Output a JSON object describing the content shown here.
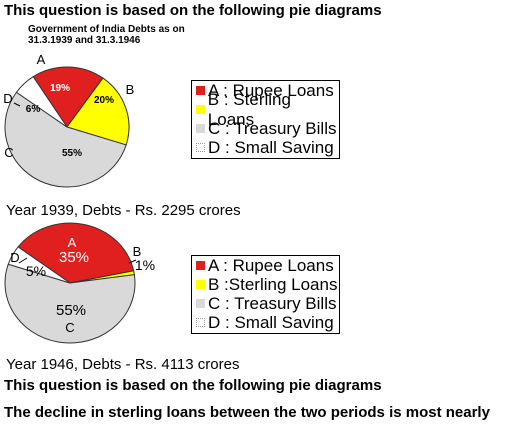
{
  "header": {
    "title": "This question is based on the following pie diagrams"
  },
  "chart_1939": {
    "subtitle_line1": "Government of India Debts as on",
    "subtitle_line2": "31.3.1939 and 31.3.1946",
    "caption": "Year 1939, Debts - Rs. 2295 crores"
  },
  "chart_1946": {
    "caption": "Year 1946, Debts - Rs. 4113 crores"
  },
  "footer": {
    "line1": "This question is based on the following pie diagrams",
    "line2": "The decline in sterling loans between the two periods is most nearly"
  },
  "legend": [
    {
      "label": "A : Rupee Loans",
      "color": "#e0201f"
    },
    {
      "label": "B : Sterling Loans",
      "color": "#ffff00"
    },
    {
      "label": "C : Treasury Bills",
      "color": "#d9d9d9"
    },
    {
      "label": "D : Small Saving",
      "color": "#ffffff"
    }
  ],
  "legend_2": [
    {
      "label": "A : Rupee Loans",
      "color": "#e0201f"
    },
    {
      "label": "B :Sterling Loans",
      "color": "#ffff00"
    },
    {
      "label": "C : Treasury Bills",
      "color": "#d9d9d9"
    },
    {
      "label": "D : Small Saving",
      "color": "#ffffff"
    }
  ],
  "chart_data": [
    {
      "type": "pie",
      "title": "",
      "total_label": "Rs. 2295 crores",
      "year": "1939",
      "slices": [
        {
          "letter": "A",
          "value": 19,
          "label": "19%",
          "color": "#e0201f"
        },
        {
          "letter": "B",
          "value": 20,
          "label": "20%",
          "color": "#ffff00"
        },
        {
          "letter": "C",
          "value": 55,
          "label": "55%",
          "color": "#d9d9d9"
        },
        {
          "letter": "D",
          "value": 6,
          "label": "6%",
          "color": "#ffffff"
        }
      ]
    },
    {
      "type": "pie",
      "title": "",
      "total_label": "Rs. 4113 crores",
      "year": "1946",
      "slices": [
        {
          "letter": "A",
          "value": 35,
          "label": "35%",
          "color": "#e0201f"
        },
        {
          "letter": "B",
          "value": 1,
          "label": "1%",
          "color": "#ffff00"
        },
        {
          "letter": "C",
          "value": 55,
          "label": "55%",
          "color": "#d9d9d9"
        },
        {
          "letter": "D",
          "value": 5,
          "label": "5%",
          "color": "#ffffff"
        }
      ]
    }
  ]
}
